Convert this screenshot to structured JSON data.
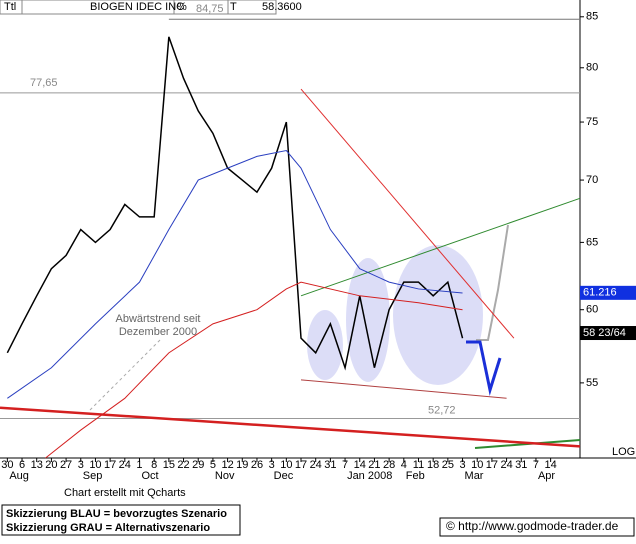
{
  "chart_data": {
    "type": "line",
    "header": {
      "code": "Ttl",
      "name": "BIOGEN IDEC INC",
      "pct": "%",
      "t": "T",
      "last": "58.3600"
    },
    "log_scale": true,
    "log_label": "LOG",
    "ylim": [
      50.3,
      86.2
    ],
    "yticks": [
      55,
      60,
      65,
      70,
      75,
      80,
      85
    ],
    "xlim": [
      -0.5,
      39
    ],
    "categories": [
      "30",
      "6",
      "13",
      "20",
      "27",
      "3",
      "10",
      "17",
      "24",
      "1",
      "8",
      "15",
      "22",
      "29",
      "5",
      "12",
      "19",
      "26",
      "3",
      "10",
      "17",
      "24",
      "31",
      "7",
      "14",
      "21",
      "28",
      "4",
      "11",
      "18",
      "25",
      "3",
      "10",
      "17",
      "24",
      "31",
      "7",
      "14"
    ],
    "months": [
      {
        "value": 0,
        "label": "Aug"
      },
      {
        "value": 5,
        "label": "Sep"
      },
      {
        "value": 9,
        "label": "Oct"
      },
      {
        "value": 14,
        "label": "Nov"
      },
      {
        "value": 18,
        "label": "Dec"
      },
      {
        "value": 23,
        "label": "Jan 2008"
      },
      {
        "value": 27,
        "label": "Feb"
      },
      {
        "value": 31,
        "label": "Mar"
      },
      {
        "value": 36,
        "label": "Apr"
      }
    ],
    "series": [
      {
        "color": "#000000",
        "x": [
          0,
          1,
          2,
          3,
          4,
          5,
          6,
          7,
          8,
          9,
          10,
          11,
          12,
          13,
          14,
          15,
          16,
          17,
          18,
          19,
          20,
          21,
          22,
          23,
          24,
          25,
          26,
          27,
          28,
          29,
          30,
          31
        ],
        "values": [
          57,
          59,
          61,
          63,
          64,
          66,
          65,
          66,
          68,
          67,
          67,
          83,
          79,
          76,
          74,
          71,
          70,
          69,
          71,
          75,
          58,
          57,
          59,
          56,
          61,
          56,
          60,
          62,
          62,
          61,
          62,
          58
        ]
      },
      {
        "color": "#2a3fc0",
        "x": [
          0,
          3,
          6,
          9,
          11,
          13,
          15,
          17,
          19,
          20,
          22,
          24,
          26,
          28,
          31
        ],
        "values": [
          54,
          56,
          59,
          62,
          66,
          70,
          71,
          72,
          72.5,
          71,
          66,
          63,
          62,
          61.5,
          61.2
        ]
      },
      {
        "color": "#d42020",
        "x": [
          2.6,
          5,
          8,
          11,
          14,
          17,
          19,
          20,
          24,
          28,
          31
        ],
        "values": [
          50.3,
          52,
          54,
          57,
          59,
          60,
          61.5,
          62,
          61,
          60.5,
          60
        ]
      }
    ],
    "levels": [
      {
        "value": 84.75,
        "label": "84,75"
      },
      {
        "value": 77.65,
        "label": "77,65"
      },
      {
        "value": 52.72,
        "label": "52,72"
      }
    ],
    "trendlines": [
      {
        "color": "#e03030",
        "x": [
          20,
          34.5
        ],
        "y": [
          78,
          58
        ]
      },
      {
        "color": "#2f8a2f",
        "x": [
          20,
          39
        ],
        "y": [
          61,
          68.5
        ]
      },
      {
        "color": "#d42020",
        "x": [
          -0.5,
          39
        ],
        "y": [
          53.4,
          51
        ]
      },
      {
        "color": "#b04040",
        "x": [
          20,
          34
        ],
        "y": [
          55.2,
          54
        ]
      }
    ],
    "annotation": "Abwärtstrend seit Dezember 2000",
    "price_boxes": [
      {
        "value": 61.216,
        "label": "61.216",
        "color": "#1030e0"
      },
      {
        "value": 58.359375,
        "label": "58 23/64",
        "color": "#000000"
      }
    ],
    "credit": "Chart erstellt mit Qcharts",
    "legend": [
      "Skizzierung BLAU = bevorzugtes Szenario",
      "Skizzierung GRAU = Alternativszenario"
    ],
    "source": "© http://www.godmode-trader.de"
  }
}
